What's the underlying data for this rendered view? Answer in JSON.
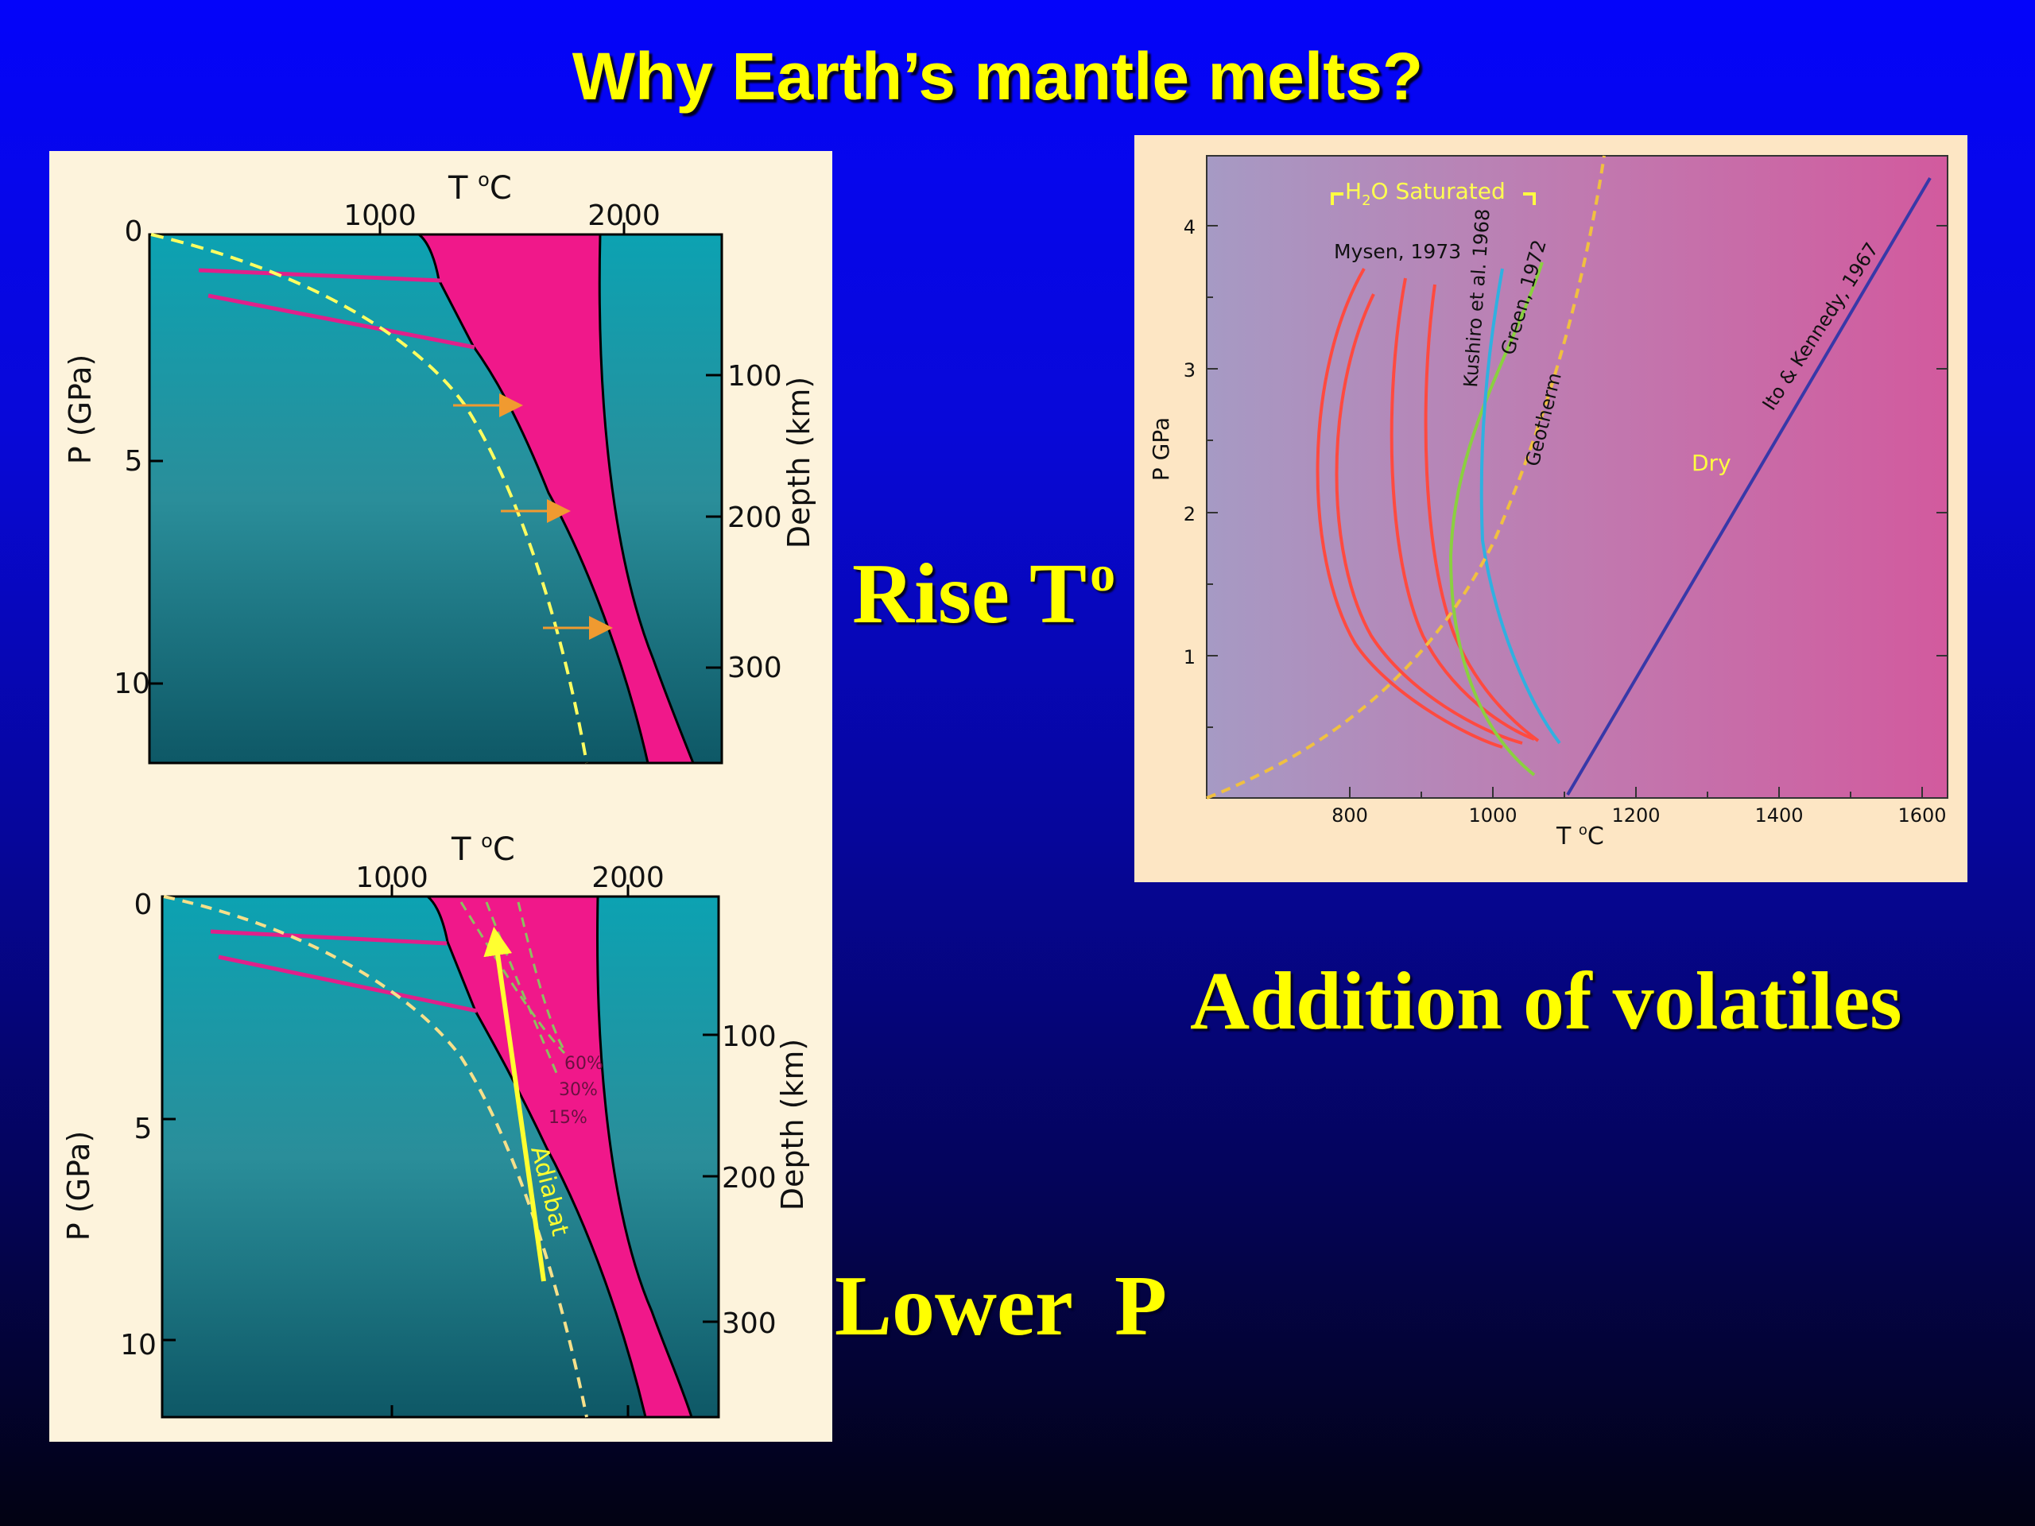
{
  "title": "Why Earth’s mantle melts?",
  "captions": {
    "rise": "Rise T",
    "rise_sup": "o",
    "lower": "Lower  P",
    "volatiles": "Addition of volatiles"
  },
  "top_left": {
    "t_label": "T ",
    "t_deg": "o",
    "t_unit": "C",
    "x_ticks": [
      "1000",
      "2000"
    ],
    "p_ticks": [
      "0",
      "5",
      "10"
    ],
    "d_ticks": [
      "100",
      "200",
      "300"
    ],
    "p_axis": "P (GPa)",
    "d_axis": "Depth (km)"
  },
  "bottom_left": {
    "t_label": "T ",
    "t_deg": "o",
    "t_unit": "C",
    "x_ticks": [
      "1000",
      "2000"
    ],
    "p_ticks": [
      "0",
      "5",
      "10"
    ],
    "d_ticks": [
      "100",
      "200",
      "300"
    ],
    "p_axis": "P (GPa)",
    "d_axis": "Depth (km)",
    "melt_labels": [
      "60%",
      "30%",
      "15%"
    ],
    "adiabat": "Adiabat"
  },
  "right": {
    "h2o_a": "H",
    "h2o_sub": "2",
    "h2o_b": "O Saturated",
    "mysen": "Mysen, 1973",
    "kushiro": "Kushiro et al. 1968",
    "green": "Green, 1972",
    "geotherm": "Geotherm",
    "ito": "Ito & Kennedy, 1967",
    "dry": "Dry",
    "y_axis": "P GPa",
    "x_axis_t": "T ",
    "x_axis_deg": "o",
    "x_axis_unit": "C",
    "y_ticks": [
      "1",
      "2",
      "3",
      "4"
    ],
    "x_ticks": [
      "800",
      "1000",
      "1200",
      "1400",
      "1600"
    ]
  },
  "colors": {
    "mantle": "#0ea0b0",
    "melt": "#f0188a",
    "geotherm": "#ffff60",
    "arrow": "#f09a30",
    "frame": "#fdf3dc"
  }
}
